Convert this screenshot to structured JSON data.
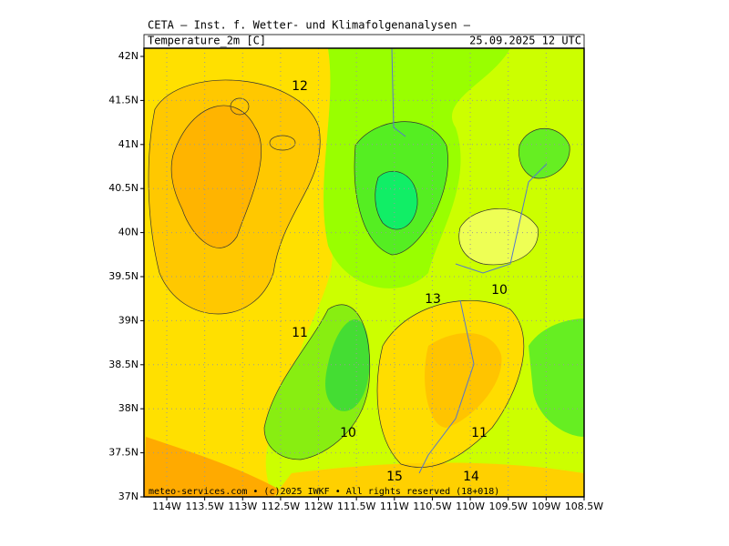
{
  "header": {
    "title": "CETA — Inst. f. Wetter- und Klimafolgenanalysen —",
    "field": "Temperature_2m [C]",
    "valid": "25.09.2025 12 UTC"
  },
  "lat_labels": [
    "42N",
    "41.5N",
    "41N",
    "40.5N",
    "40N",
    "39.5N",
    "39N",
    "38.5N",
    "38N",
    "37.5N",
    "37N"
  ],
  "lon_labels": [
    "114W",
    "113.5W",
    "113W",
    "112.5W",
    "112W",
    "111.5W",
    "111W",
    "110.5W",
    "110W",
    "109.5W",
    "109W",
    "108.5W"
  ],
  "contour_labels": [
    "12",
    "13",
    "10",
    "11",
    "10",
    "11",
    "15",
    "14"
  ],
  "credit": "meteo-services.com • (c)2025 IWKF • All rights reserved (18+018)"
}
